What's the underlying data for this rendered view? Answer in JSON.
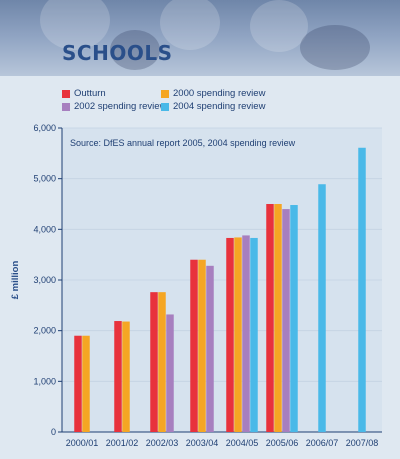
{
  "title": "SCHOOLS",
  "chart_data": {
    "type": "bar",
    "note": "Source: DfES annual report 2005, 2004 spending review",
    "ylabel": "£ million",
    "ylim": [
      0,
      6000
    ],
    "yticks": [
      "0",
      "1,000",
      "2,000",
      "3,000",
      "4,000",
      "5,000",
      "6,000"
    ],
    "categories": [
      "2000/01",
      "2001/02",
      "2002/03",
      "2003/04",
      "2004/05",
      "2005/06",
      "2006/07",
      "2007/08"
    ],
    "legend_placement": "top-left",
    "series": [
      {
        "name": "Outturn",
        "color": "#e8323c",
        "values": [
          1900,
          2190,
          2760,
          3400,
          3830,
          4500,
          null,
          null
        ]
      },
      {
        "name": "2000 spending review",
        "color": "#f5a623",
        "values": [
          1900,
          2180,
          2760,
          3400,
          3840,
          4500,
          null,
          null
        ]
      },
      {
        "name": "2002 spending review",
        "color": "#a77fbf",
        "values": [
          null,
          null,
          2320,
          3280,
          3880,
          4400,
          null,
          null
        ]
      },
      {
        "name": "2004 spending review",
        "color": "#4ab9e8",
        "values": [
          null,
          null,
          null,
          null,
          3830,
          4480,
          4890,
          5610
        ]
      }
    ]
  }
}
